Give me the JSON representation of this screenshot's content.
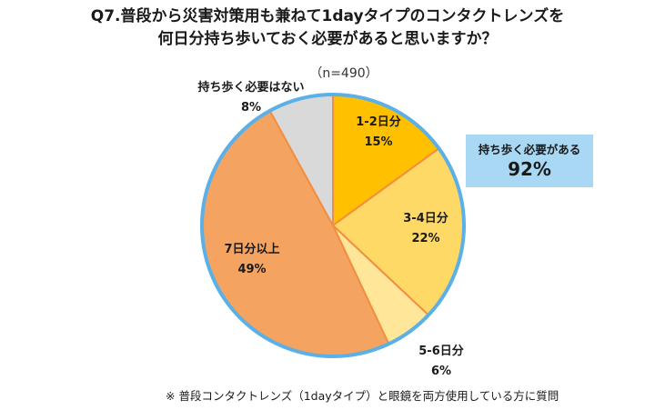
{
  "title": {
    "line1": "Q7.普段から災害対策用も兼ねて1dayタイプのコンタクトレンズを",
    "line2": "何日分持ち歩いておく必要があると思いますか？"
  },
  "sample_size": "（n=490）",
  "chart_data": {
    "type": "pie",
    "title": "Q7.普段から災害対策用も兼ねて1dayタイプのコンタクトレンズを何日分持ち歩いておく必要があると思いますか？",
    "slices": [
      {
        "label": "1-2日分",
        "value": 15,
        "value_label": "15%",
        "color": "#ffc000"
      },
      {
        "label": "3-4日分",
        "value": 22,
        "value_label": "22%",
        "color": "#ffd966"
      },
      {
        "label": "5-6日分",
        "value": 6,
        "value_label": "6%",
        "color": "#ffe699"
      },
      {
        "label": "7日分以上",
        "value": 49,
        "value_label": "49%",
        "color": "#f4a460"
      },
      {
        "label": "持ち歩く必要はない",
        "value": 8,
        "value_label": "8%",
        "color": "#d9d9d9"
      }
    ],
    "start_angle": "12 o'clock",
    "direction": "clockwise",
    "outline_color": "#5bb0e8",
    "separator_color": "#f28e40"
  },
  "callout": {
    "label": "持ち歩く必要がある",
    "value": "92%",
    "color": "#a9d8f4"
  },
  "footnote": "※ 普段コンタクトレンズ（1dayタイプ）と眼鏡を両方使用している方に質問"
}
